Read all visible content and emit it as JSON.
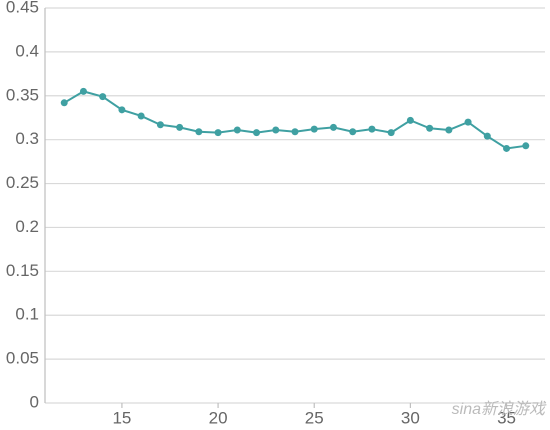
{
  "chart_data": {
    "type": "line",
    "x": [
      12,
      13,
      14,
      15,
      16,
      17,
      18,
      19,
      20,
      21,
      22,
      23,
      24,
      25,
      26,
      27,
      28,
      29,
      30,
      31,
      32,
      33,
      34,
      35,
      36
    ],
    "series": [
      {
        "color": "#3fa0a2",
        "values": [
          0.342,
          0.355,
          0.349,
          0.334,
          0.327,
          0.317,
          0.314,
          0.309,
          0.308,
          0.311,
          0.308,
          0.311,
          0.309,
          0.312,
          0.314,
          0.309,
          0.312,
          0.308,
          0.322,
          0.313,
          0.311,
          0.32,
          0.304,
          0.29,
          0.293
        ]
      }
    ],
    "xlim": [
      11,
      37
    ],
    "xticks": [
      15,
      20,
      25,
      30,
      35
    ],
    "ylim": [
      0,
      0.45
    ],
    "yticks": [
      0,
      0.05,
      0.1,
      0.15,
      0.2,
      0.25,
      0.3,
      0.35,
      0.4,
      0.45
    ],
    "grid": true,
    "watermark": "sina新浪游戏"
  }
}
